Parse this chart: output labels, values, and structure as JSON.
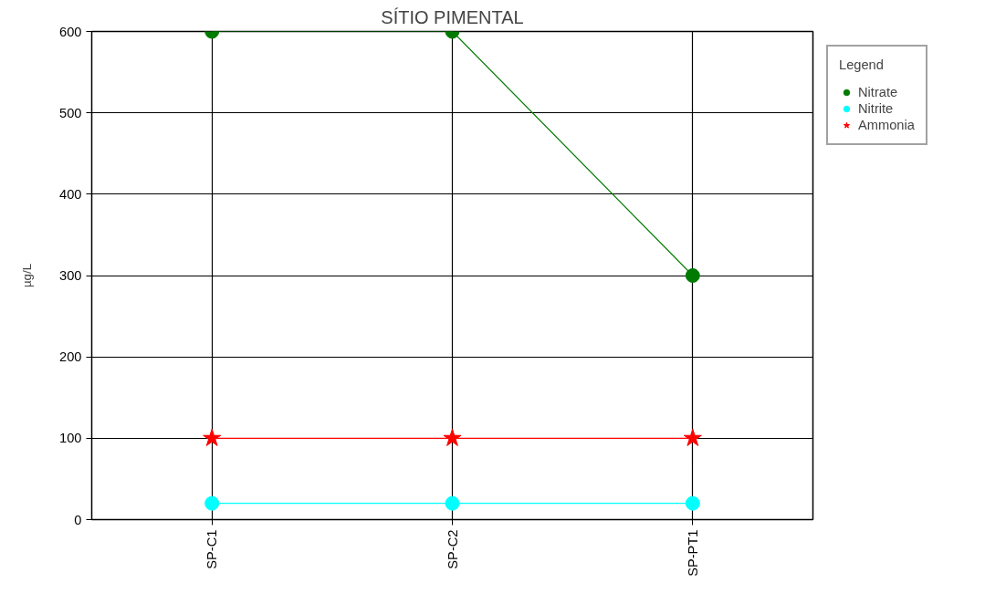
{
  "chart_data": {
    "type": "line",
    "title": "SÍTIO PIMENTAL",
    "ylabel": "µg/L",
    "legend_title": "Legend",
    "categories": [
      "SP-C1",
      "SP-C2",
      "SP-PT1"
    ],
    "series": [
      {
        "name": "Nitrate",
        "color": "#007a00",
        "marker": "circle",
        "values": [
          600,
          600,
          300
        ]
      },
      {
        "name": "Nitrite",
        "color": "#00ffff",
        "marker": "circle",
        "values": [
          20,
          20,
          20
        ]
      },
      {
        "name": "Ammonia",
        "color": "#ff0000",
        "marker": "star",
        "values": [
          100,
          100,
          100
        ]
      }
    ],
    "ylim": [
      0,
      600
    ],
    "yticks": [
      0,
      100,
      200,
      300,
      400,
      500,
      600
    ],
    "grid": true,
    "legend": "right"
  }
}
